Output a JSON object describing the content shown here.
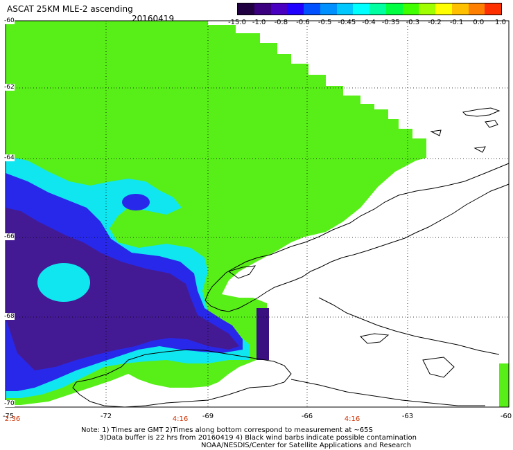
{
  "header": {
    "title": "ASCAT 25KM MLE-2 ascending",
    "date": "20160419"
  },
  "colorbar": {
    "labels": [
      "-15.0",
      "-1.0",
      "-0.8",
      "-0.6",
      "-0.5",
      "-0.45",
      "-0.4",
      "-0.35",
      "-0.3",
      "-0.2",
      "-0.1",
      "0.0",
      "1.0"
    ],
    "colors": [
      "#200040",
      "#3a0080",
      "#4a00c0",
      "#2000ff",
      "#0050ff",
      "#0090ff",
      "#00c8ff",
      "#00ffff",
      "#00ffa0",
      "#00ff40",
      "#40ff00",
      "#a0ff00",
      "#ffff00",
      "#ffc000",
      "#ff8000",
      "#ff3000"
    ]
  },
  "axes": {
    "lat_labels": [
      "-60",
      "-62",
      "-64",
      "-66",
      "-68",
      "-70"
    ],
    "lon_labels": [
      "-75",
      "-72",
      "-69",
      "-66",
      "-63",
      "-60"
    ],
    "time_labels": [
      "2:36",
      "4:16",
      "4:16"
    ]
  },
  "notes": {
    "line1": "Note: 1) Times are GMT 2)Times along bottom correspond to measurement at ~65S",
    "line2": "3)Data buffer is 22 hrs from 20160419 4) Black wind barbs indicate possible contamination",
    "line3": "NOAA/NESDIS/Center for Satellite Applications and Research"
  },
  "map_colors": {
    "green": "#58ee18",
    "cyan": "#10e6ef",
    "blue": "#2828ea",
    "purple": "#441a94",
    "darkpurple": "#3a1080",
    "coast": "#000000"
  }
}
